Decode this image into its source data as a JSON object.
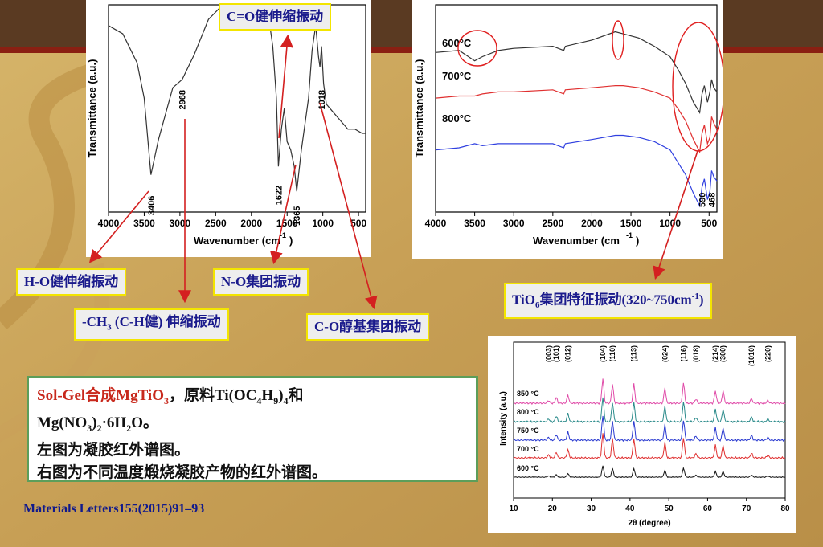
{
  "labels": {
    "co_stretch": "C=O健伸缩振动",
    "ho_stretch": "H-O健伸缩振动",
    "ch3_pre": "-CH",
    "ch3_sub": "3",
    "ch3_post": " (C-H健) 伸缩振动",
    "no_group": "N-O集团振动",
    "co_alcohol": "C-O醇基集团振动",
    "tio6_pre": "TiO",
    "tio6_sub": "6",
    "tio6_mid": "集团特征振动(320~750cm",
    "tio6_sup": "-1",
    "tio6_post": ")"
  },
  "note": {
    "line1_red": "Sol-Gel合成MgTiO",
    "line1_red_sub": "3",
    "line1_rest_a": "，原料Ti(OC",
    "line1_sub1": "4",
    "line1_rest_b": "H",
    "line1_sub2": "9",
    "line1_rest_c": ")",
    "line1_sub3": "4",
    "line1_rest_d": "和",
    "line2_a": "Mg(NO",
    "line2_sub1": "3",
    "line2_b": ")",
    "line2_sub2": "2",
    "line2_c": "·6H",
    "line2_sub3": "2",
    "line2_d": "O。",
    "line3": "左图为凝胶红外谱图。",
    "line4": "右图为不同温度煅烧凝胶产物的红外谱图。"
  },
  "reference": "Materials Letters155(2015)91–93",
  "colors": {
    "label_border": "#f3e500",
    "label_text": "#1a1a8c",
    "arrow": "#d42020",
    "note_border": "#5c9e5a",
    "highlight": "#c8281c"
  },
  "chart_data": [
    {
      "type": "line",
      "xlabel": "Wavenumber (cm-1)",
      "ylabel": "Transmittance (a.u.)",
      "xlim": [
        4000,
        400
      ],
      "xticks": [
        4000,
        3500,
        3000,
        2500,
        2000,
        1500,
        1000,
        500
      ],
      "series": [
        {
          "x": [
            4000,
            3800,
            3600,
            3500,
            3406,
            3300,
            3100,
            2968,
            2800,
            2600,
            2400,
            2360,
            2330,
            2200,
            2000,
            1850,
            1750,
            1700,
            1650,
            1622,
            1580,
            1540,
            1500,
            1450,
            1400,
            1365,
            1300,
            1200,
            1150,
            1100,
            1060,
            1040,
            1018,
            990,
            950,
            850,
            750,
            650,
            550,
            450,
            400
          ],
          "y": [
            0.9,
            0.86,
            0.72,
            0.55,
            0.18,
            0.35,
            0.6,
            0.64,
            0.76,
            0.93,
            1.0,
            0.95,
            0.98,
            1.0,
            1.0,
            0.99,
            0.92,
            0.8,
            0.55,
            0.22,
            0.4,
            0.5,
            0.34,
            0.3,
            0.22,
            0.1,
            0.3,
            0.55,
            0.78,
            0.9,
            0.75,
            0.7,
            0.8,
            0.62,
            0.52,
            0.48,
            0.44,
            0.4,
            0.4,
            0.38,
            0.38
          ]
        }
      ],
      "annotations": [
        "3406",
        "2968",
        "1622",
        "1365",
        "1018"
      ]
    },
    {
      "type": "line",
      "xlabel": "Wavenumber (cm-1)",
      "ylabel": "Transmittance (a.u.)",
      "xlim": [
        4000,
        400
      ],
      "xticks": [
        4000,
        3500,
        3000,
        2500,
        2000,
        1500,
        1000,
        500
      ],
      "series": [
        {
          "name": "600°C",
          "color": "#333333",
          "x": [
            4000,
            3700,
            3500,
            3400,
            3200,
            3000,
            2500,
            2360,
            2340,
            2000,
            1700,
            1600,
            1400,
            1200,
            1000,
            900,
            800,
            700,
            620,
            590,
            560,
            520,
            490,
            468,
            440,
            400
          ],
          "y": [
            0.77,
            0.78,
            0.73,
            0.75,
            0.78,
            0.79,
            0.8,
            0.78,
            0.8,
            0.83,
            0.87,
            0.86,
            0.84,
            0.8,
            0.75,
            0.69,
            0.62,
            0.53,
            0.48,
            0.57,
            0.61,
            0.53,
            0.58,
            0.64,
            0.6,
            0.58
          ]
        },
        {
          "name": "700°C",
          "color": "#e03030",
          "x": [
            4000,
            3700,
            3500,
            3400,
            3200,
            3000,
            2500,
            2360,
            2340,
            2000,
            1700,
            1600,
            1400,
            1200,
            1000,
            900,
            800,
            700,
            620,
            590,
            560,
            520,
            490,
            468,
            440,
            400
          ],
          "y": [
            0.55,
            0.56,
            0.56,
            0.57,
            0.58,
            0.58,
            0.59,
            0.57,
            0.59,
            0.6,
            0.61,
            0.61,
            0.6,
            0.58,
            0.55,
            0.5,
            0.44,
            0.35,
            0.29,
            0.38,
            0.42,
            0.33,
            0.36,
            0.46,
            0.43,
            0.4
          ]
        },
        {
          "name": "800°C",
          "color": "#3040e0",
          "x": [
            4000,
            3700,
            3500,
            3400,
            3200,
            3000,
            2500,
            2360,
            2340,
            2000,
            1700,
            1600,
            1400,
            1200,
            1000,
            900,
            800,
            700,
            620,
            590,
            560,
            520,
            490,
            468,
            440,
            400
          ],
          "y": [
            0.3,
            0.31,
            0.33,
            0.32,
            0.33,
            0.33,
            0.33,
            0.31,
            0.33,
            0.35,
            0.37,
            0.37,
            0.36,
            0.34,
            0.3,
            0.24,
            0.18,
            0.09,
            0.03,
            0.12,
            0.16,
            0.06,
            0.1,
            0.2,
            0.17,
            0.15
          ]
        }
      ],
      "annotations": [
        "590",
        "468"
      ]
    },
    {
      "type": "line",
      "xlabel": "2θ (degree)",
      "ylabel": "Intensity (a.u.)",
      "xlim": [
        10,
        80
      ],
      "xticks": [
        10,
        20,
        30,
        40,
        50,
        60,
        70,
        80
      ],
      "peaks": [
        {
          "pos": 19.0,
          "h": 0.3,
          "label": "(003)"
        },
        {
          "pos": 21.0,
          "h": 0.6,
          "label": "(101)"
        },
        {
          "pos": 24.0,
          "h": 0.85,
          "label": "(012)"
        },
        {
          "pos": 33.0,
          "h": 2.6,
          "label": "(104)"
        },
        {
          "pos": 35.5,
          "h": 2.0,
          "label": "(110)"
        },
        {
          "pos": 41.0,
          "h": 2.0,
          "label": "(113)"
        },
        {
          "pos": 49.0,
          "h": 1.6,
          "label": "(024)"
        },
        {
          "pos": 53.8,
          "h": 2.1,
          "label": "(116)"
        },
        {
          "pos": 57.0,
          "h": 0.45,
          "label": "(018)"
        },
        {
          "pos": 62.0,
          "h": 1.3,
          "label": "(214)"
        },
        {
          "pos": 64.0,
          "h": 1.3,
          "label": "(300)"
        },
        {
          "pos": 71.3,
          "h": 0.5,
          "label": "(1010)"
        },
        {
          "pos": 75.5,
          "h": 0.3,
          "label": "(220)"
        }
      ],
      "series": [
        {
          "name": "600 °C",
          "color": "#111111"
        },
        {
          "name": "700 °C",
          "color": "#e03030"
        },
        {
          "name": "750 °C",
          "color": "#2a3ad0"
        },
        {
          "name": "800 °C",
          "color": "#2a8a8a"
        },
        {
          "name": "850 °C",
          "color": "#e04aa8"
        }
      ]
    }
  ]
}
